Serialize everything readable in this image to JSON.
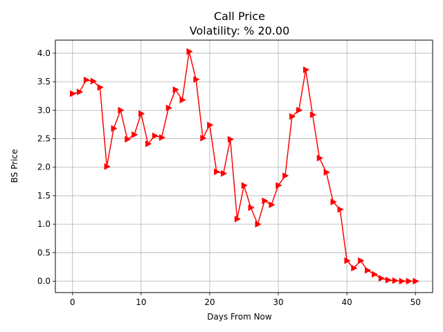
{
  "chart_data": {
    "type": "line",
    "title": "Call Price",
    "subtitle": "Volatility: % 20.00",
    "xlabel": "Days From Now",
    "ylabel": "BS Price",
    "xlim": [
      -2.5,
      52.5
    ],
    "ylim": [
      -0.2,
      4.23
    ],
    "xticks": [
      0,
      10,
      20,
      30,
      40,
      50
    ],
    "yticks": [
      0.0,
      0.5,
      1.0,
      1.5,
      2.0,
      2.5,
      3.0,
      3.5,
      4.0
    ],
    "xtick_labels": [
      "0",
      "10",
      "20",
      "30",
      "40",
      "50"
    ],
    "ytick_labels": [
      "0.0",
      "0.5",
      "1.0",
      "1.5",
      "2.0",
      "2.5",
      "3.0",
      "3.5",
      "4.0"
    ],
    "grid": true,
    "marker": "triangle-right",
    "color": "#ff0000",
    "series": [
      {
        "x": [
          0,
          1,
          2,
          3,
          4,
          5,
          6,
          7,
          8,
          9,
          10,
          11,
          12,
          13,
          14,
          15,
          16,
          17,
          18,
          19,
          20,
          21,
          22,
          23,
          24,
          25,
          26,
          27,
          28,
          29,
          30,
          31,
          32,
          33,
          34,
          35,
          36,
          37,
          38,
          39,
          40,
          41,
          42,
          43,
          44,
          45,
          46,
          47,
          48,
          49,
          50
        ],
        "values": [
          3.29,
          3.32,
          3.53,
          3.51,
          3.4,
          2.01,
          2.68,
          3.0,
          2.49,
          2.57,
          2.94,
          2.41,
          2.55,
          2.52,
          3.04,
          3.36,
          3.18,
          4.03,
          3.54,
          2.51,
          2.74,
          1.92,
          1.89,
          2.49,
          1.09,
          1.68,
          1.29,
          1.0,
          1.41,
          1.34,
          1.68,
          1.85,
          2.89,
          3.0,
          3.71,
          2.92,
          2.16,
          1.91,
          1.39,
          1.26,
          0.36,
          0.23,
          0.36,
          0.19,
          0.12,
          0.05,
          0.02,
          0.01,
          0.0,
          0.0,
          0.0
        ]
      }
    ]
  }
}
